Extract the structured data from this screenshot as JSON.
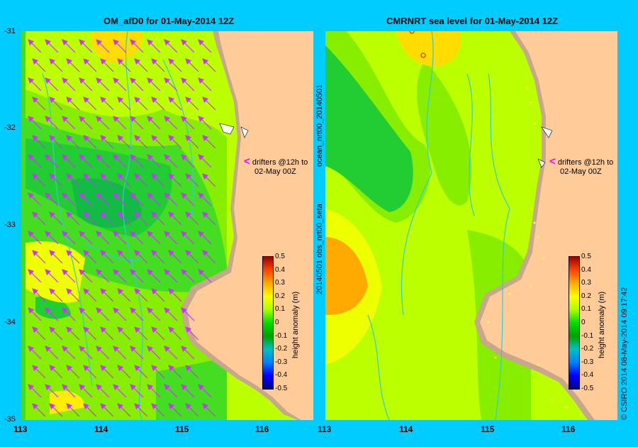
{
  "left": {
    "title": "OM_afD0 for 01-May-2014 12Z",
    "y_ticks": [
      "-31",
      "-32",
      "-33",
      "-34",
      "-35"
    ],
    "x_ticks": [
      "113",
      "114",
      "115",
      "116"
    ],
    "drifters_line1": "drifters @12h to",
    "drifters_line2": "02-May 00Z"
  },
  "right": {
    "title": "CMRNRT sea level  for 01-May-2014 12Z",
    "x_ticks": [
      "113",
      "114",
      "115",
      "116"
    ],
    "side_label_top": "ocean_nrt00_20140501",
    "side_label_bottom": "20140501 obs_nrt00_seta",
    "drifters_line1": "drifters @12h to",
    "drifters_line2": "02-May 00Z"
  },
  "colorbar": {
    "ticks": [
      "0.5",
      "0.4",
      "0.3",
      "0.2",
      "0.1",
      "0",
      "-0.1",
      "-0.2",
      "-0.3",
      "-0.4",
      "-0.5"
    ],
    "label": "height anomaly (m)"
  },
  "footer": {
    "credit": "© CSIRO 2014   08-May-2014 09:17:42"
  },
  "colors": {
    "land": "#ffcc99",
    "coast": "#c8a88a",
    "arrow": "#cc33ff",
    "river": "#33cccc",
    "background": "#00ccff"
  }
}
